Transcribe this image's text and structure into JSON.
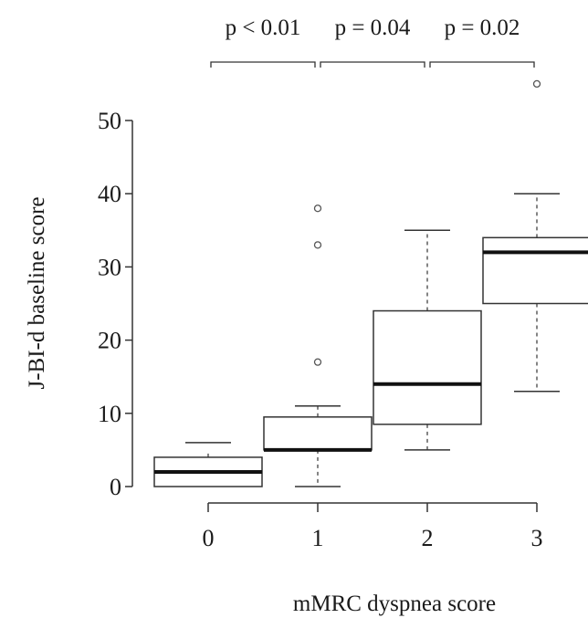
{
  "chart_data": {
    "type": "box",
    "xlabel": "mMRC dyspnea score",
    "ylabel": "J-BI-d baseline score",
    "categories": [
      "0",
      "1",
      "2",
      "3"
    ],
    "y_ticks": [
      0,
      10,
      20,
      30,
      40,
      50
    ],
    "ylim": [
      0,
      50
    ],
    "grid": false,
    "boxes": [
      {
        "category": "0",
        "whisker_low": 0,
        "q1": 0,
        "median": 2,
        "q3": 4,
        "whisker_high": 5,
        "cap": 6,
        "outliers": []
      },
      {
        "category": "1",
        "whisker_low": 0,
        "q1": 5,
        "median": 5,
        "q3": 9.5,
        "whisker_high": 11,
        "outliers": [
          17,
          33,
          38
        ]
      },
      {
        "category": "2",
        "whisker_low": 5,
        "q1": 8.5,
        "median": 14,
        "q3": 24,
        "whisker_high": 35,
        "outliers": []
      },
      {
        "category": "3",
        "whisker_low": 13,
        "q1": 25,
        "median": 32,
        "q3": 34,
        "whisker_high": 40,
        "outliers": [
          55
        ]
      }
    ],
    "comparisons": [
      {
        "from": "0",
        "to": "1",
        "label": "p < 0.01"
      },
      {
        "from": "1",
        "to": "2",
        "label": "p = 0.04"
      },
      {
        "from": "2",
        "to": "3",
        "label": "p = 0.02"
      }
    ]
  }
}
